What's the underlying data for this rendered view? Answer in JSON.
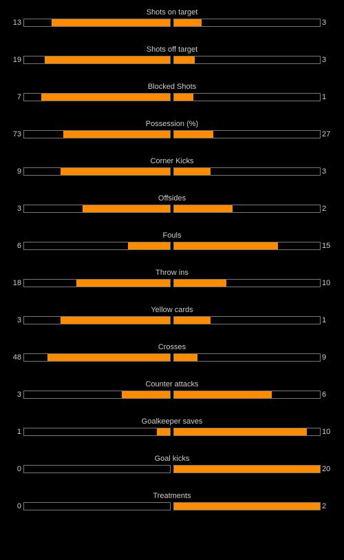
{
  "colors": {
    "background": "#000000",
    "bar_fill": "#ff8c00",
    "bar_border": "#777777",
    "text": "#cccccc"
  },
  "stats": [
    {
      "label": "Shots on target",
      "home": "13",
      "away": "3",
      "home_share": 0.81,
      "away_share": 0.19
    },
    {
      "label": "Shots off target",
      "home": "19",
      "away": "3",
      "home_share": 0.86,
      "away_share": 0.14
    },
    {
      "label": "Blocked Shots",
      "home": "7",
      "away": "1",
      "home_share": 0.88,
      "away_share": 0.13
    },
    {
      "label": "Possession (%)",
      "home": "73",
      "away": "27",
      "home_share": 0.73,
      "away_share": 0.27
    },
    {
      "label": "Corner Kicks",
      "home": "9",
      "away": "3",
      "home_share": 0.75,
      "away_share": 0.25
    },
    {
      "label": "Offsides",
      "home": "3",
      "away": "2",
      "home_share": 0.6,
      "away_share": 0.4
    },
    {
      "label": "Fouls",
      "home": "6",
      "away": "15",
      "home_share": 0.29,
      "away_share": 0.71
    },
    {
      "label": "Throw ins",
      "home": "18",
      "away": "10",
      "home_share": 0.64,
      "away_share": 0.36
    },
    {
      "label": "Yellow cards",
      "home": "3",
      "away": "1",
      "home_share": 0.75,
      "away_share": 0.25
    },
    {
      "label": "Crosses",
      "home": "48",
      "away": "9",
      "home_share": 0.84,
      "away_share": 0.16
    },
    {
      "label": "Counter attacks",
      "home": "3",
      "away": "6",
      "home_share": 0.33,
      "away_share": 0.67
    },
    {
      "label": "Goalkeeper saves",
      "home": "1",
      "away": "10",
      "home_share": 0.09,
      "away_share": 0.91
    },
    {
      "label": "Goal kicks",
      "home": "0",
      "away": "20",
      "home_share": 0.0,
      "away_share": 1.0
    },
    {
      "label": "Treatments",
      "home": "0",
      "away": "2",
      "home_share": 0.0,
      "away_share": 1.0
    }
  ]
}
